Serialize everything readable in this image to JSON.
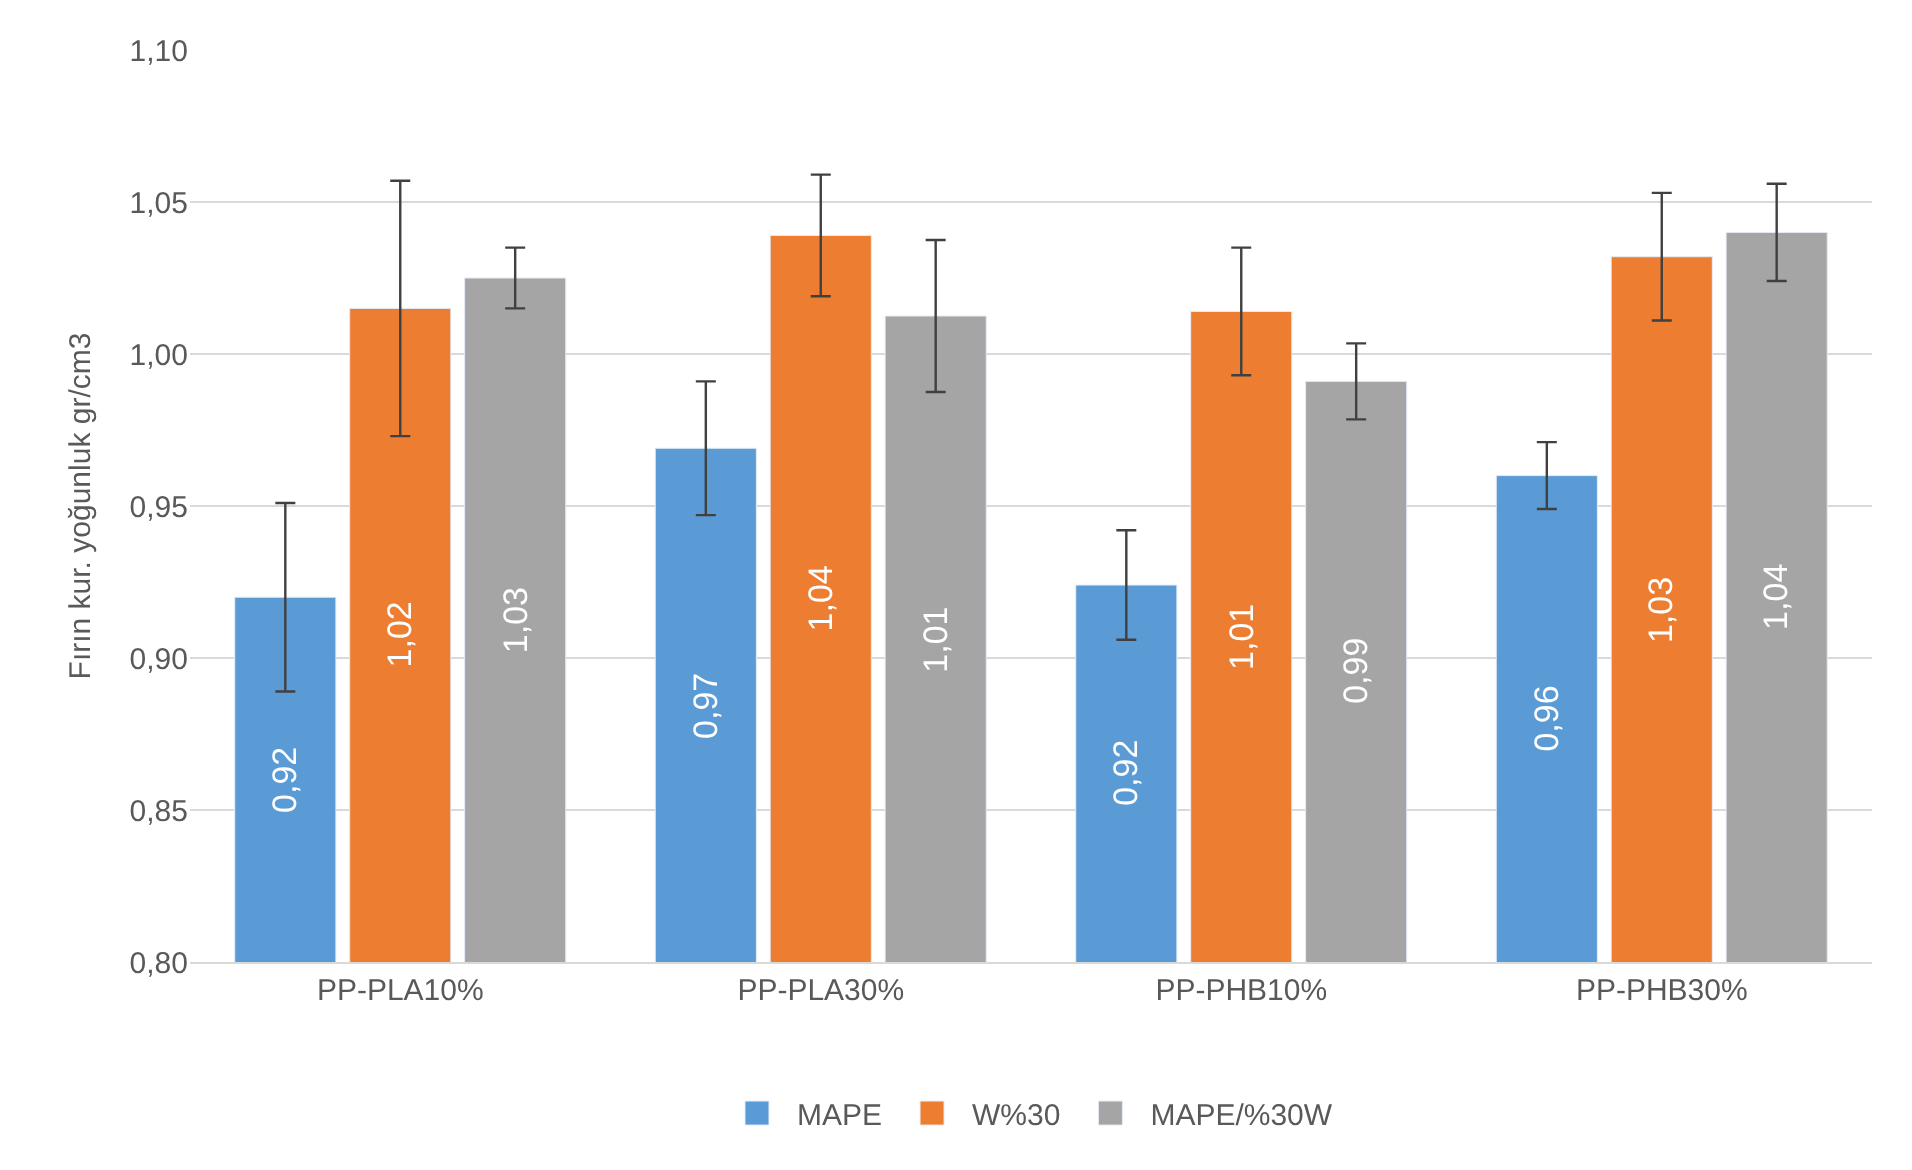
{
  "chart_data": {
    "type": "bar",
    "ylabel": "Fırın kur. yoğunluk gr/cm3",
    "categories": [
      "PP-PLA10%",
      "PP-PLA30%",
      "PP-PHB10%",
      "PP-PHB30%"
    ],
    "series": [
      {
        "name": "MAPE",
        "color": "#5b9bd5",
        "values": [
          0.92,
          0.969,
          0.924,
          0.96
        ],
        "errors": [
          0.031,
          0.022,
          0.018,
          0.011
        ],
        "value_labels": [
          "0,92",
          "0,97",
          "0,92",
          "0,96"
        ]
      },
      {
        "name": "W%30",
        "color": "#ed7d31",
        "values": [
          1.015,
          1.039,
          1.014,
          1.032
        ],
        "errors": [
          0.042,
          0.02,
          0.021,
          0.021
        ],
        "value_labels": [
          "1,02",
          "1,04",
          "1,01",
          "1,03"
        ]
      },
      {
        "name": "MAPE/%30W",
        "color": "#a5a5a5",
        "values": [
          1.025,
          1.0125,
          0.991,
          1.04
        ],
        "errors": [
          0.01,
          0.025,
          0.0125,
          0.016
        ],
        "value_labels": [
          "1,03",
          "1,01",
          "0,99",
          "1,04"
        ]
      }
    ],
    "ylim": [
      0.8,
      1.1
    ],
    "yticks": [
      {
        "value": 0.8,
        "label": "0,80"
      },
      {
        "value": 0.85,
        "label": "0,85"
      },
      {
        "value": 0.9,
        "label": "0,90"
      },
      {
        "value": 0.95,
        "label": "0,95"
      },
      {
        "value": 1.0,
        "label": "1,00"
      },
      {
        "value": 1.05,
        "label": "1,05"
      },
      {
        "value": 1.1,
        "label": "1,10"
      }
    ],
    "grid": "y",
    "legend": "bottom"
  }
}
